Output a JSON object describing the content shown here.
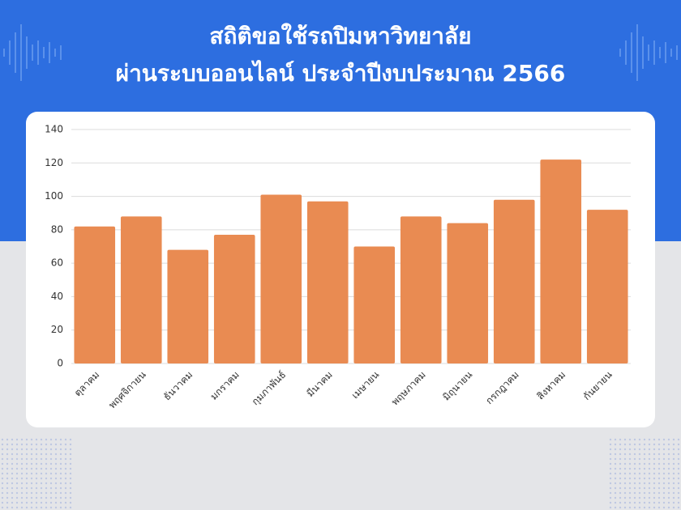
{
  "chart_data": {
    "type": "bar",
    "title": "สถิติขอใช้รถปิมหาวิทยาลัย",
    "subtitle": "ผ่านระบบออนไลน์ ประจำปีงบประมาณ 2566",
    "categories": [
      "ตุลาคม",
      "พฤศจิกายน",
      "ธันวาคม",
      "มกราคม",
      "กุมภาพันธ์",
      "มีนาคม",
      "เมษายน",
      "พฤษภาคม",
      "มิถุนายน",
      "กรกฎาคม",
      "สิงหาคม",
      "กันยายน"
    ],
    "values": [
      82,
      88,
      68,
      77,
      101,
      97,
      70,
      88,
      84,
      98,
      122,
      92
    ],
    "color": "#e98b52",
    "ylim": [
      0,
      140
    ],
    "yticks": [
      0,
      20,
      40,
      60,
      80,
      100,
      120,
      140
    ],
    "grid": true
  }
}
